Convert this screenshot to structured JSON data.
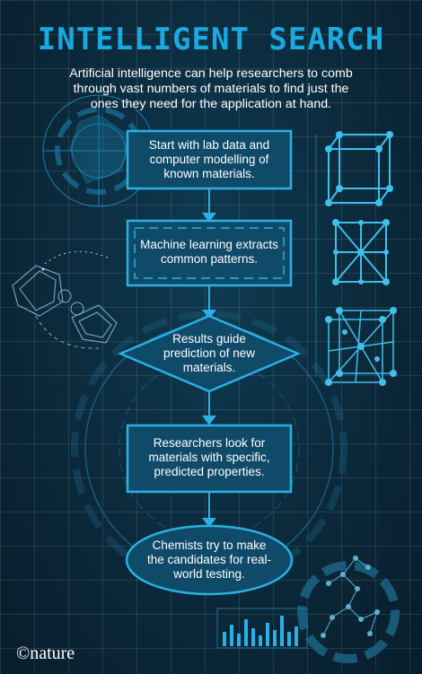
{
  "title": "INTELLIGENT SEARCH",
  "intro": "Artificial intelligence can help researchers to comb through vast numbers of materials to find just the ones they need for the application at hand.",
  "steps": [
    "Start with lab data and computer modelling of known materials.",
    "Machine learning extracts common patterns.",
    "Results guide prediction of new materials.",
    "Researchers look for materials with specific, predicted properties.",
    "Chemists try to make the candidates for real-world testing."
  ],
  "logo": "©nature",
  "colors": {
    "accent": "#19a9de",
    "background": "#0b2a3c",
    "node_fill": "#0f4a69"
  }
}
